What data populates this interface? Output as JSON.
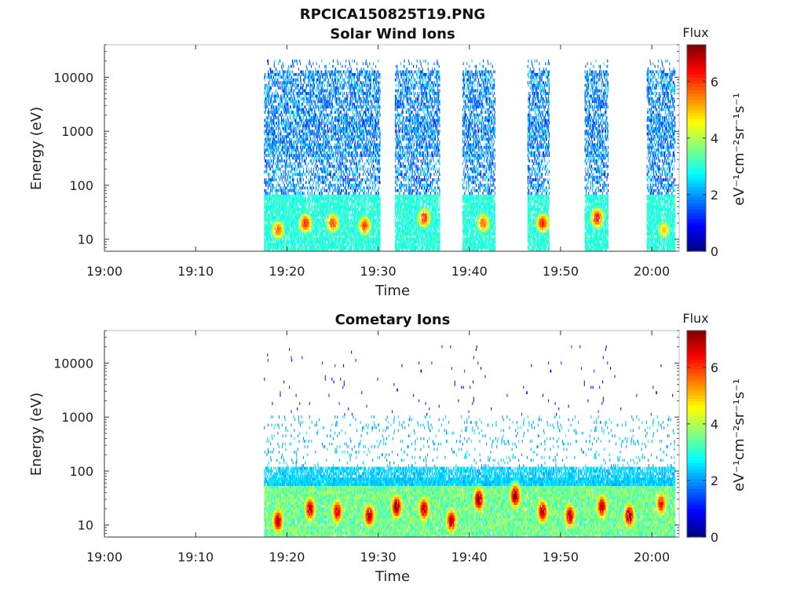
{
  "figure_title": "RPCICA150825T19.PNG",
  "chart_data": [
    {
      "type": "heatmap",
      "title": "Solar Wind Ions",
      "xlabel": "Time",
      "ylabel": "Energy (eV)",
      "y_scale": "log",
      "ylim": [
        6,
        40000
      ],
      "xlim": [
        "19:00",
        "20:03"
      ],
      "x_ticks": [
        "19:00",
        "19:10",
        "19:20",
        "19:30",
        "19:40",
        "19:50",
        "20:00"
      ],
      "y_ticks": [
        "10",
        "100",
        "1000",
        "10000"
      ],
      "colorbar": {
        "label": "Flux",
        "unit": "eV⁻¹cm⁻²sr⁻¹s⁻¹",
        "range": [
          0,
          7.3
        ],
        "ticks": [
          "0",
          "2",
          "4",
          "6"
        ],
        "colormap": "jet"
      },
      "data_start": "19:17.5",
      "data_end": "20:02.5",
      "gaps": [
        [
          "19:30.2",
          "19:31.8"
        ],
        [
          "19:36.7",
          "19:39.2"
        ],
        [
          "19:42.8",
          "19:46.3"
        ],
        [
          "19:48.7",
          "19:52.6"
        ],
        [
          "19:55.2",
          "19:59.4"
        ]
      ],
      "low_energy_peaks": [
        {
          "time": "19:19",
          "energy": 15,
          "value": 5.8
        },
        {
          "time": "19:22",
          "energy": 20,
          "value": 6.2
        },
        {
          "time": "19:25",
          "energy": 20,
          "value": 6.0
        },
        {
          "time": "19:28.5",
          "energy": 18,
          "value": 6.0
        },
        {
          "time": "19:35",
          "energy": 25,
          "value": 6.2
        },
        {
          "time": "19:41.5",
          "energy": 20,
          "value": 5.8
        },
        {
          "time": "19:48",
          "energy": 20,
          "value": 6.3
        },
        {
          "time": "19:54",
          "energy": 25,
          "value": 6.5
        },
        {
          "time": "20:01.3",
          "energy": 15,
          "value": 5.0
        }
      ]
    },
    {
      "type": "heatmap",
      "title": "Cometary Ions",
      "xlabel": "Time",
      "ylabel": "Energy (eV)",
      "y_scale": "log",
      "ylim": [
        6,
        40000
      ],
      "xlim": [
        "19:00",
        "20:03"
      ],
      "x_ticks": [
        "19:00",
        "19:10",
        "19:20",
        "19:30",
        "19:40",
        "19:50",
        "20:00"
      ],
      "y_ticks": [
        "10",
        "100",
        "1000",
        "10000"
      ],
      "colorbar": {
        "label": "Flux",
        "unit": "eV⁻¹cm⁻²sr⁻¹s⁻¹",
        "range": [
          0,
          7.3
        ],
        "ticks": [
          "0",
          "2",
          "4",
          "6"
        ],
        "colormap": "jet"
      },
      "data_start": "19:17.5",
      "data_end": "20:02.5",
      "low_energy_peaks": [
        {
          "time": "19:19",
          "energy": 12,
          "value": 7.0
        },
        {
          "time": "19:22.5",
          "energy": 20,
          "value": 7.0
        },
        {
          "time": "19:25.5",
          "energy": 18,
          "value": 6.8
        },
        {
          "time": "19:29",
          "energy": 15,
          "value": 7.0
        },
        {
          "time": "19:32",
          "energy": 22,
          "value": 7.3
        },
        {
          "time": "19:35",
          "energy": 20,
          "value": 7.0
        },
        {
          "time": "19:38",
          "energy": 12,
          "value": 7.0
        },
        {
          "time": "19:41",
          "energy": 30,
          "value": 7.3
        },
        {
          "time": "19:45",
          "energy": 35,
          "value": 7.3
        },
        {
          "time": "19:48",
          "energy": 18,
          "value": 7.0
        },
        {
          "time": "19:51",
          "energy": 15,
          "value": 7.0
        },
        {
          "time": "19:54.5",
          "energy": 22,
          "value": 7.0
        },
        {
          "time": "19:57.5",
          "energy": 15,
          "value": 7.3
        },
        {
          "time": "20:01",
          "energy": 25,
          "value": 6.5
        }
      ]
    }
  ]
}
